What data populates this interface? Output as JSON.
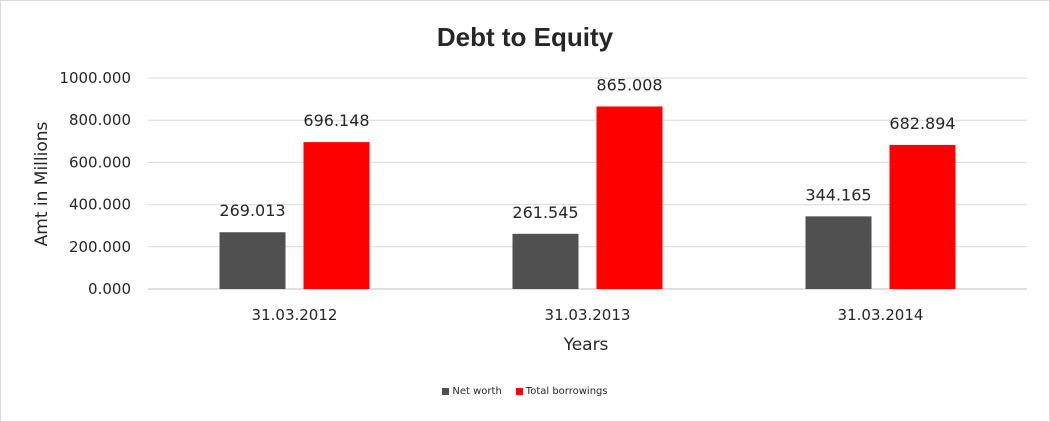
{
  "chart_data": {
    "type": "bar",
    "title": "Debt to Equity",
    "xlabel": "Years",
    "ylabel": "Amt in Millions",
    "categories": [
      "31.03.2012",
      "31.03.2013",
      "31.03.2014"
    ],
    "series": [
      {
        "name": "Net worth",
        "color": "#505050",
        "values": [
          269.013,
          261.545,
          344.165
        ],
        "labels": [
          "269.013",
          "261.545",
          "344.165"
        ]
      },
      {
        "name": "Total borrowings",
        "color": "#ff0000",
        "values": [
          696.148,
          865.008,
          682.894
        ],
        "labels": [
          "696.148",
          "865.008",
          "682.894"
        ]
      }
    ],
    "ylim": [
      0,
      1000
    ],
    "yticks": [
      "0.000",
      "200.000",
      "400.000",
      "600.000",
      "800.000",
      "1000.000"
    ],
    "grid": true,
    "legend_position": "bottom"
  }
}
